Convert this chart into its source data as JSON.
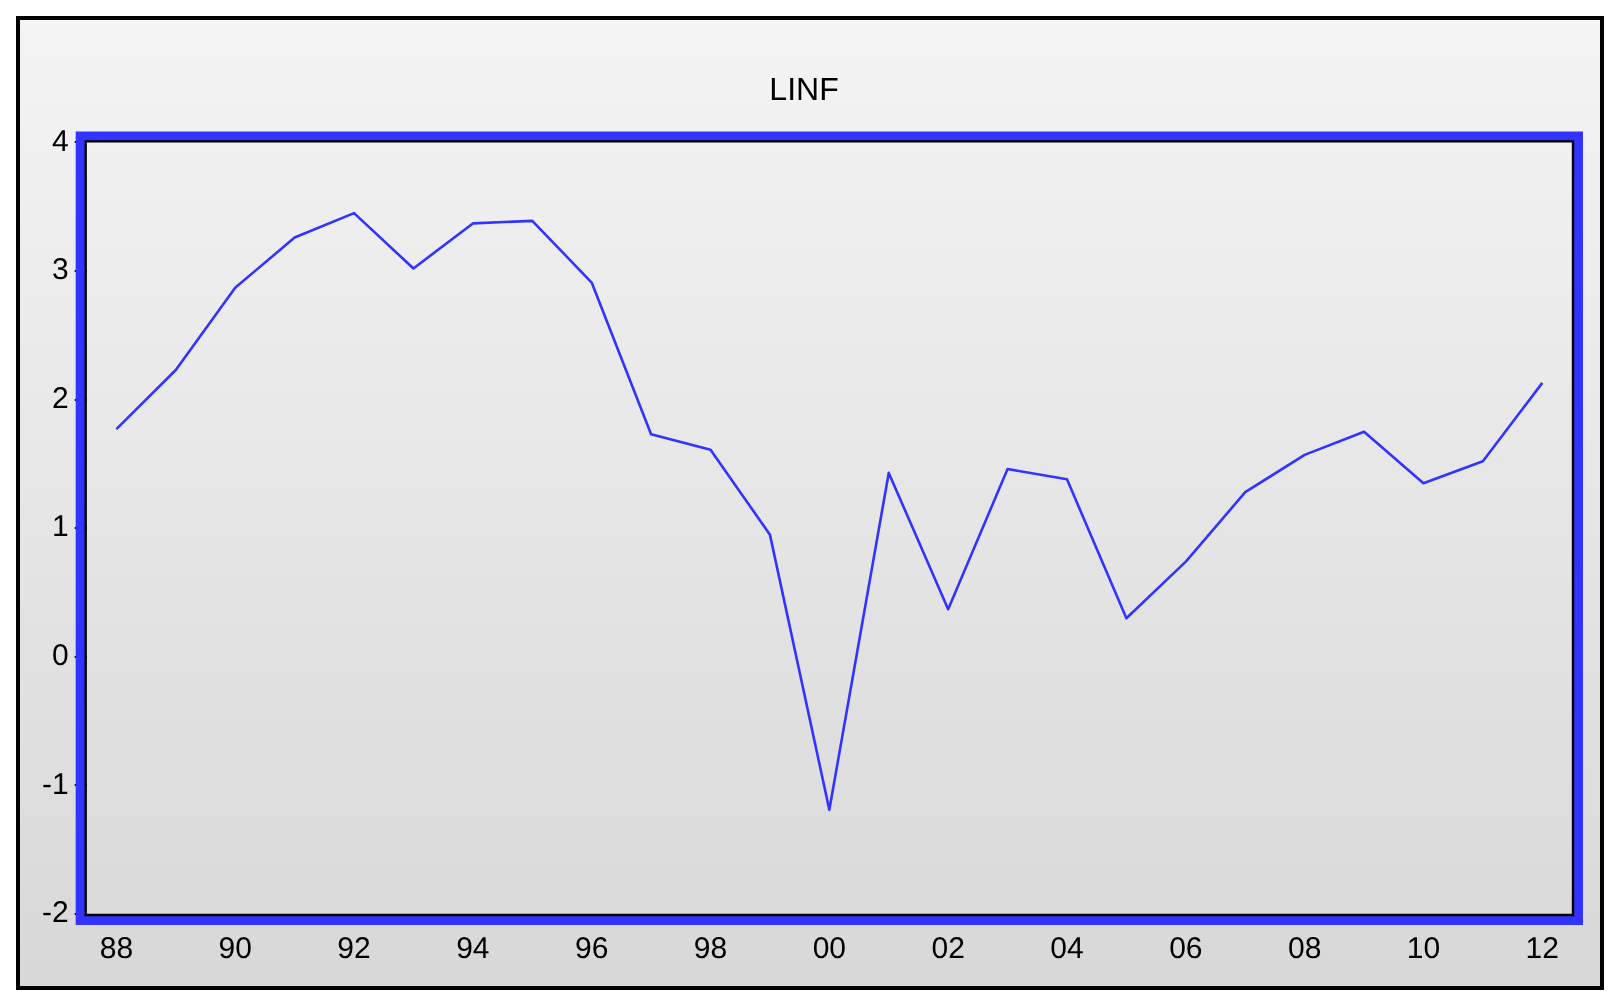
{
  "chart_data": {
    "type": "line",
    "title": "LINF",
    "categories": [
      "88",
      null,
      "90",
      null,
      "92",
      null,
      "94",
      null,
      "96",
      null,
      "98",
      null,
      "00",
      null,
      "02",
      null,
      "04",
      null,
      "06",
      null,
      "08",
      null,
      "10",
      null,
      "12"
    ],
    "series": [
      {
        "color": "#3333ff",
        "values": [
          1.77,
          2.23,
          2.87,
          3.26,
          3.45,
          3.02,
          3.37,
          3.39,
          2.91,
          1.73,
          1.61,
          0.95,
          -1.19,
          1.43,
          0.37,
          1.46,
          1.38,
          0.3,
          0.74,
          1.28,
          1.57,
          1.75,
          1.35,
          1.52,
          2.13
        ]
      }
    ],
    "ylim": [
      -2,
      4
    ],
    "yticks": [
      -2,
      -1,
      0,
      1,
      2,
      3,
      4
    ],
    "grid": false,
    "legend": false,
    "marker": "none",
    "line_style": "solid"
  }
}
